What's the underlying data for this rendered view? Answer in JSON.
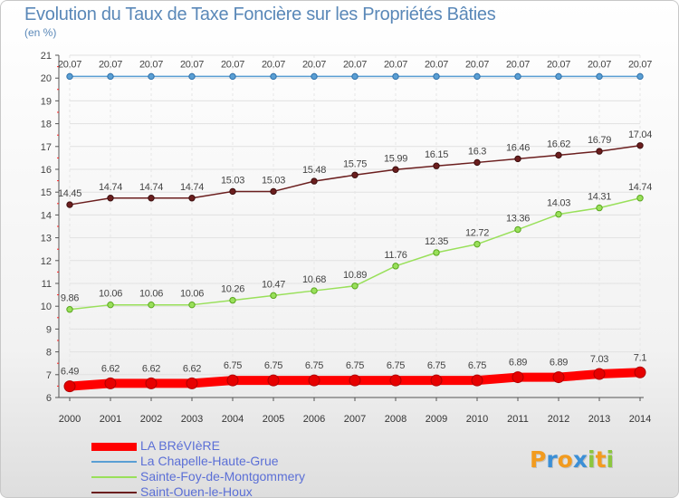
{
  "chart_data": {
    "type": "line",
    "title": "Evolution du Taux de Taxe Foncière sur les Propriétés Bâties",
    "ylabel": "(en %)",
    "xlabel": "",
    "ylim": [
      6,
      21
    ],
    "yticks": [
      6,
      7,
      8,
      9,
      10,
      11,
      12,
      13,
      14,
      15,
      16,
      17,
      18,
      19,
      20,
      21
    ],
    "categories": [
      "2000",
      "2001",
      "2002",
      "2003",
      "2004",
      "2005",
      "2006",
      "2007",
      "2008",
      "2009",
      "2010",
      "2011",
      "2012",
      "2013",
      "2014"
    ],
    "series": [
      {
        "name": "LA BRéVIèRE",
        "color": "#ff0000",
        "values": [
          6.49,
          6.62,
          6.62,
          6.62,
          6.75,
          6.75,
          6.75,
          6.75,
          6.75,
          6.75,
          6.75,
          6.89,
          6.89,
          7.03,
          7.1
        ],
        "labels": [
          "6.49",
          "6.62",
          "6.62",
          "6.62",
          "6.75",
          "6.75",
          "6.75",
          "6.75",
          "6.75",
          "6.75",
          "6.75",
          "6.89",
          "6.89",
          "7.03",
          "7.1"
        ]
      },
      {
        "name": "La Chapelle-Haute-Grue",
        "color": "#5a9fd4",
        "values": [
          20.07,
          20.07,
          20.07,
          20.07,
          20.07,
          20.07,
          20.07,
          20.07,
          20.07,
          20.07,
          20.07,
          20.07,
          20.07,
          20.07,
          20.07
        ],
        "labels": [
          "20.07",
          "20.07",
          "20.07",
          "20.07",
          "20.07",
          "20.07",
          "20.07",
          "20.07",
          "20.07",
          "20.07",
          "20.07",
          "20.07",
          "20.07",
          "20.07",
          "20.07"
        ]
      },
      {
        "name": "Sainte-Foy-de-Montgommery",
        "color": "#99e05a",
        "values": [
          9.86,
          10.06,
          10.06,
          10.06,
          10.26,
          10.47,
          10.68,
          10.89,
          11.76,
          12.35,
          12.72,
          13.36,
          14.03,
          14.31,
          14.74
        ],
        "labels": [
          "9.86",
          "10.06",
          "10.06",
          "10.06",
          "10.26",
          "10.47",
          "10.68",
          "10.89",
          "11.76",
          "12.35",
          "12.72",
          "13.36",
          "14.03",
          "14.31",
          "14.74"
        ]
      },
      {
        "name": "Saint-Ouen-le-Houx",
        "color": "#6b1e1e",
        "values": [
          14.45,
          14.74,
          14.74,
          14.74,
          15.03,
          15.03,
          15.48,
          15.75,
          15.99,
          16.15,
          16.3,
          16.46,
          16.62,
          16.79,
          17.04
        ],
        "labels": [
          "14.45",
          "14.74",
          "14.74",
          "14.74",
          "15.03",
          "15.03",
          "15.48",
          "15.75",
          "15.99",
          "16.15",
          "16.3",
          "16.46",
          "16.62",
          "16.79",
          "17.04"
        ]
      }
    ],
    "legend": "bottom-left"
  },
  "logo": {
    "letters": [
      "P",
      "r",
      "o",
      "x",
      "i",
      "t",
      "i"
    ],
    "colors": [
      "#f29b1f",
      "#3b8fd6",
      "#f29b1f",
      "#3b8fd6",
      "#8cc63f",
      "#f29b1f",
      "#8cc63f"
    ]
  }
}
